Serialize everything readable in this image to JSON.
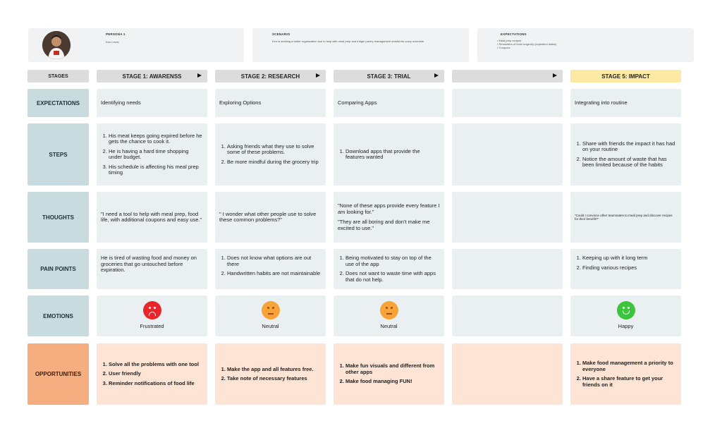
{
  "persona": {
    "label": "PERSONA 1",
    "name": "Ken Lewis"
  },
  "scenario": {
    "label": "SCENARIO",
    "text": "Ken is seeking a better organization tool to help with meal prep and fridge/ pantry management amidst his crazy schedule."
  },
  "expectations_card": {
    "label": "EXPECTATIONS",
    "items": [
      "Meal prep recipes",
      "Reminders of food longevity (expiration dates)",
      "Coupons"
    ]
  },
  "stages_label": "STAGES",
  "stages": [
    "STAGE 1: AWARENSS",
    "STAGE 2: RESEARCH",
    "STAGE 3: TRIAL",
    "",
    "STAGE 5: IMPACT"
  ],
  "rows": {
    "expectations": {
      "label": "EXPECTATIONS",
      "cells": [
        "Identifying needs",
        "Exploring Options",
        "Comparing Apps",
        "",
        "Integrating into routine"
      ]
    },
    "steps": {
      "label": "STEPS",
      "cells": [
        [
          "His meat keeps going expired before he gets the chance to cook it.",
          "He is having a hard time shopping under budget.",
          "His schedule is affecting his meal prep timing"
        ],
        [
          "Asking friends what they use to solve some of these problems.",
          "Be more mindful during the grocery trip"
        ],
        [
          "Download apps that provide the features wanted"
        ],
        [],
        [
          "Share with friends the impact it has had on your routine",
          "Notice the amount of waste that has been limited because of the habits"
        ]
      ]
    },
    "thoughts": {
      "label": "THOUGHTS",
      "cells": [
        [
          "\"I need a tool to help with meal prep, food life, with additional coupons and easy use.\""
        ],
        [
          "\" I wonder what other people use to solve these common problems?\""
        ],
        [
          "\"None of these apps provide every feature I am looking for.\"",
          "\"They are all boring and don't make me excited to use.\""
        ],
        [],
        [
          "\"Could I convince other teammates to meal prep and discover recipes for their benefit?\""
        ]
      ]
    },
    "pain_points": {
      "label": "PAIN POINTS",
      "cells": [
        {
          "type": "text",
          "text": "He is tired of wasting food and money on groceries that go untouched before expiration."
        },
        {
          "type": "list",
          "items": [
            "Does not know what options are out there",
            "Handwritten habits are not maintainable"
          ]
        },
        {
          "type": "list",
          "items": [
            "Being motivated to stay on top of the use of the app",
            "Does not want to waste time with apps that do not help."
          ]
        },
        {
          "type": "list",
          "items": []
        },
        {
          "type": "list",
          "items": [
            "Keeping up with it long term",
            "Finding various recipes"
          ]
        }
      ]
    },
    "emotions": {
      "label": "EMOTIONS",
      "cells": [
        {
          "label": "Frustrated",
          "icon": "sad-face-icon",
          "color": "#e8262b"
        },
        {
          "label": "Neutral",
          "icon": "neutral-face-icon",
          "color": "#f7a33a"
        },
        {
          "label": "Neutral",
          "icon": "neutral-face-icon",
          "color": "#f7a33a"
        },
        {
          "label": "",
          "icon": "",
          "color": ""
        },
        {
          "label": "Happy",
          "icon": "happy-face-icon",
          "color": "#3dc43d"
        }
      ]
    },
    "opportunities": {
      "label": "OPPORTUNITIES",
      "cells": [
        [
          "Solve all the problems with one tool",
          "User friendly",
          "Reminder notifications of food life"
        ],
        [
          "Make the app and all features free.",
          "Take note of necessary features"
        ],
        [
          "Make fun visuals and different from other apps",
          "Make food managing FUN!"
        ],
        [],
        [
          "Make food management a priority to everyone",
          "Have a share feature to get your friends on it"
        ]
      ]
    }
  }
}
